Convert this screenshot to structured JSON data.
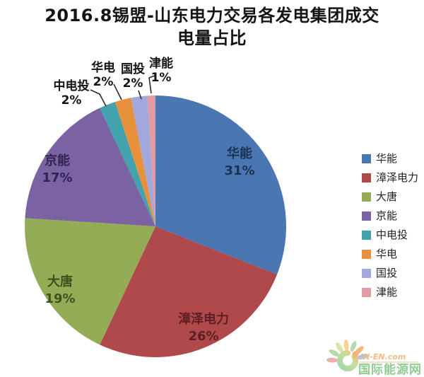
{
  "title": {
    "line1": "2016.8锡盟-山东电力交易各发电集团成交",
    "line2": "电量占比"
  },
  "chart_data": {
    "type": "pie",
    "title": "2016.8锡盟-山东电力交易各发电集团成交电量占比",
    "unit": "%",
    "start_angle_deg": 0,
    "direction": "clockwise",
    "legend_position": "right",
    "slices": [
      {
        "label": "华能",
        "value": 31,
        "pct_label": "31%",
        "color": "#4A76B2",
        "label_placement": "inside"
      },
      {
        "label": "漳泽电力",
        "value": 26,
        "pct_label": "26%",
        "color": "#B0494B",
        "label_placement": "inside"
      },
      {
        "label": "大唐",
        "value": 19,
        "pct_label": "19%",
        "color": "#95AC56",
        "label_placement": "inside"
      },
      {
        "label": "京能",
        "value": 17,
        "pct_label": "17%",
        "color": "#7A62A3",
        "label_placement": "inside"
      },
      {
        "label": "中电投",
        "value": 2,
        "pct_label": "2%",
        "color": "#42A2AE",
        "label_placement": "outside"
      },
      {
        "label": "华电",
        "value": 2,
        "pct_label": "2%",
        "color": "#E8913D",
        "label_placement": "outside"
      },
      {
        "label": "国投",
        "value": 2,
        "pct_label": "2%",
        "color": "#A1A8DB",
        "label_placement": "outside"
      },
      {
        "label": "津能",
        "value": 1,
        "pct_label": "1%",
        "color": "#E19BA5",
        "label_placement": "outside"
      }
    ]
  },
  "watermark": {
    "site": "IN-EN.com",
    "name": "国际能源网"
  }
}
